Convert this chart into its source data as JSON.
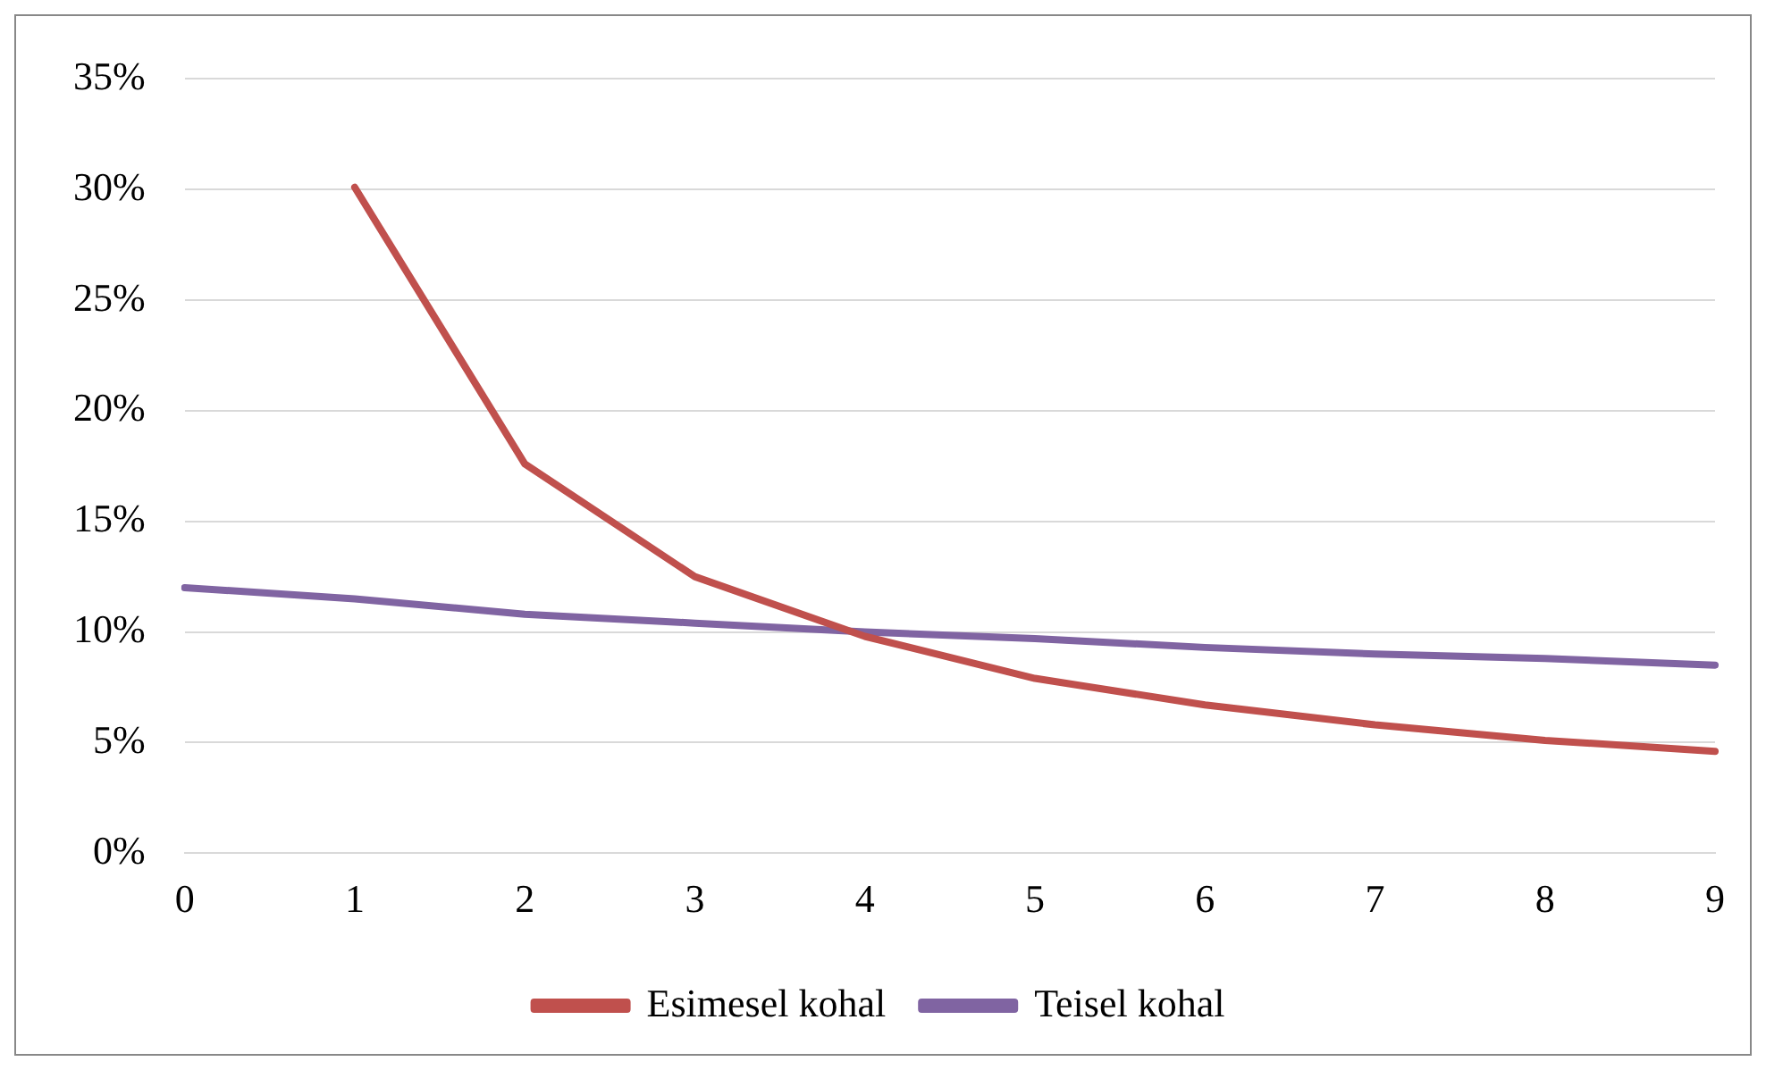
{
  "chart_data": {
    "type": "line",
    "categories": [
      "0",
      "1",
      "2",
      "3",
      "4",
      "5",
      "6",
      "7",
      "8",
      "9"
    ],
    "series": [
      {
        "name": "Esimesel kohal",
        "color": "#c0504d",
        "values": [
          null,
          30.1,
          17.6,
          12.5,
          9.8,
          7.9,
          6.7,
          5.8,
          5.1,
          4.6
        ]
      },
      {
        "name": "Teisel kohal",
        "color": "#8064a2",
        "values": [
          12.0,
          11.5,
          10.8,
          10.4,
          10.0,
          9.7,
          9.3,
          9.0,
          8.8,
          8.5
        ]
      }
    ],
    "ylim": [
      0,
      35
    ],
    "yticks": [
      {
        "value": 0,
        "label": "0%"
      },
      {
        "value": 5,
        "label": "5%"
      },
      {
        "value": 10,
        "label": "10%"
      },
      {
        "value": 15,
        "label": "15%"
      },
      {
        "value": 20,
        "label": "20%"
      },
      {
        "value": 25,
        "label": "25%"
      },
      {
        "value": 30,
        "label": "30%"
      },
      {
        "value": 35,
        "label": "35%"
      }
    ],
    "grid": "y",
    "legend": "bottom",
    "marker": "none",
    "line_style": "solid"
  }
}
